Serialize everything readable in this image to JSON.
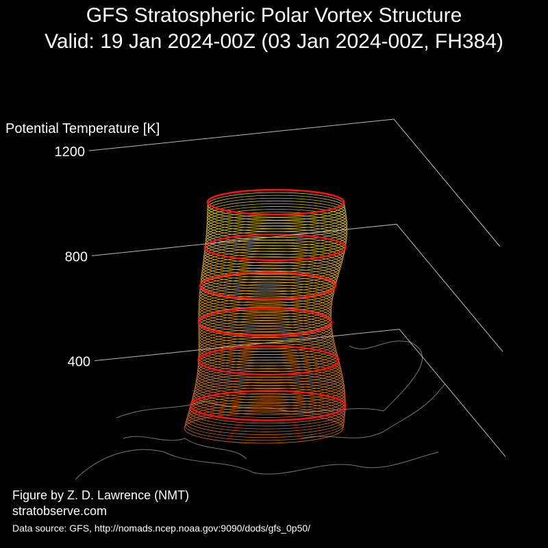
{
  "chart_data": {
    "type": "vortex3d",
    "title": [
      "GFS Stratospheric Polar Vortex Structure",
      "Valid: 19 Jan 2024-00Z  (03 Jan 2024-00Z, FH384)"
    ],
    "zlabel": "Potential Temperature [K]",
    "zlim": [
      0,
      1200
    ],
    "zticks": [
      400,
      800,
      1200
    ],
    "credits": [
      "Figure by Z. D. Lawrence (NMT)",
      "stratobserve.com"
    ],
    "source": "Data source: GFS, http://nomads.ncep.noaa.gov:9090/dods/gfs_0p50/"
  }
}
